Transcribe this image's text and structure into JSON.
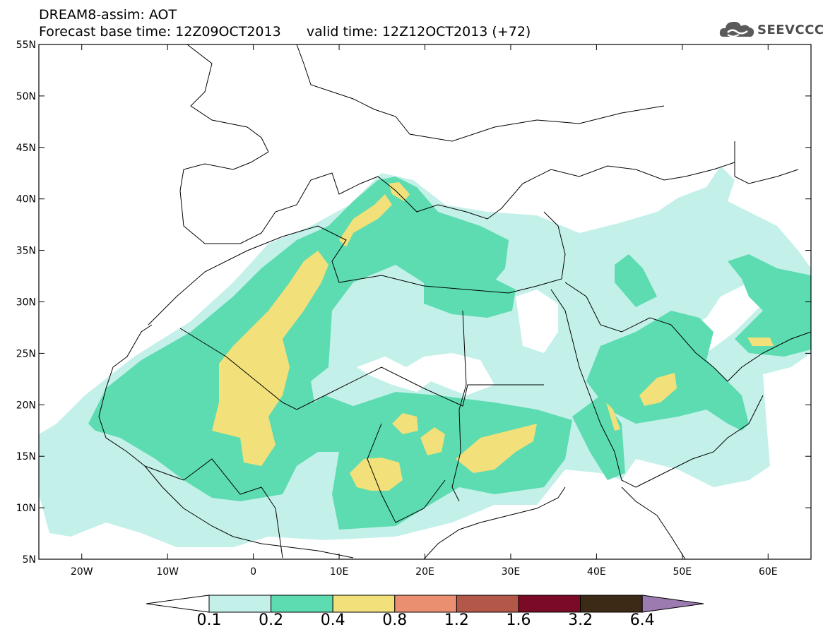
{
  "title": {
    "line1": "DREAM8-assim: AOT",
    "line2": "Forecast base time: 12Z09OCT2013      valid time: 12Z12OCT2013 (+72)"
  },
  "logo": {
    "text": "SEEVCCC",
    "icon": "cloud-icon"
  },
  "map": {
    "lon_range": [
      -25,
      65
    ],
    "lat_range": [
      5,
      55
    ],
    "lat_ticks": [
      "55N",
      "50N",
      "45N",
      "40N",
      "35N",
      "30N",
      "25N",
      "20N",
      "15N",
      "10N",
      "5N"
    ],
    "lon_ticks": [
      "20W",
      "10W",
      "0",
      "10E",
      "20E",
      "30E",
      "40E",
      "50E",
      "60E"
    ]
  },
  "colorbar": {
    "labels": [
      "0.1",
      "0.2",
      "0.4",
      "0.8",
      "1.2",
      "1.6",
      "3.2",
      "6.4"
    ],
    "colors": [
      "#c4f0ea",
      "#5cdcb0",
      "#f2e07a",
      "#ea9070",
      "#b35848",
      "#7a0a26",
      "#3d2a16",
      "#9b7bb0"
    ],
    "under_color": "#ffffff"
  }
}
